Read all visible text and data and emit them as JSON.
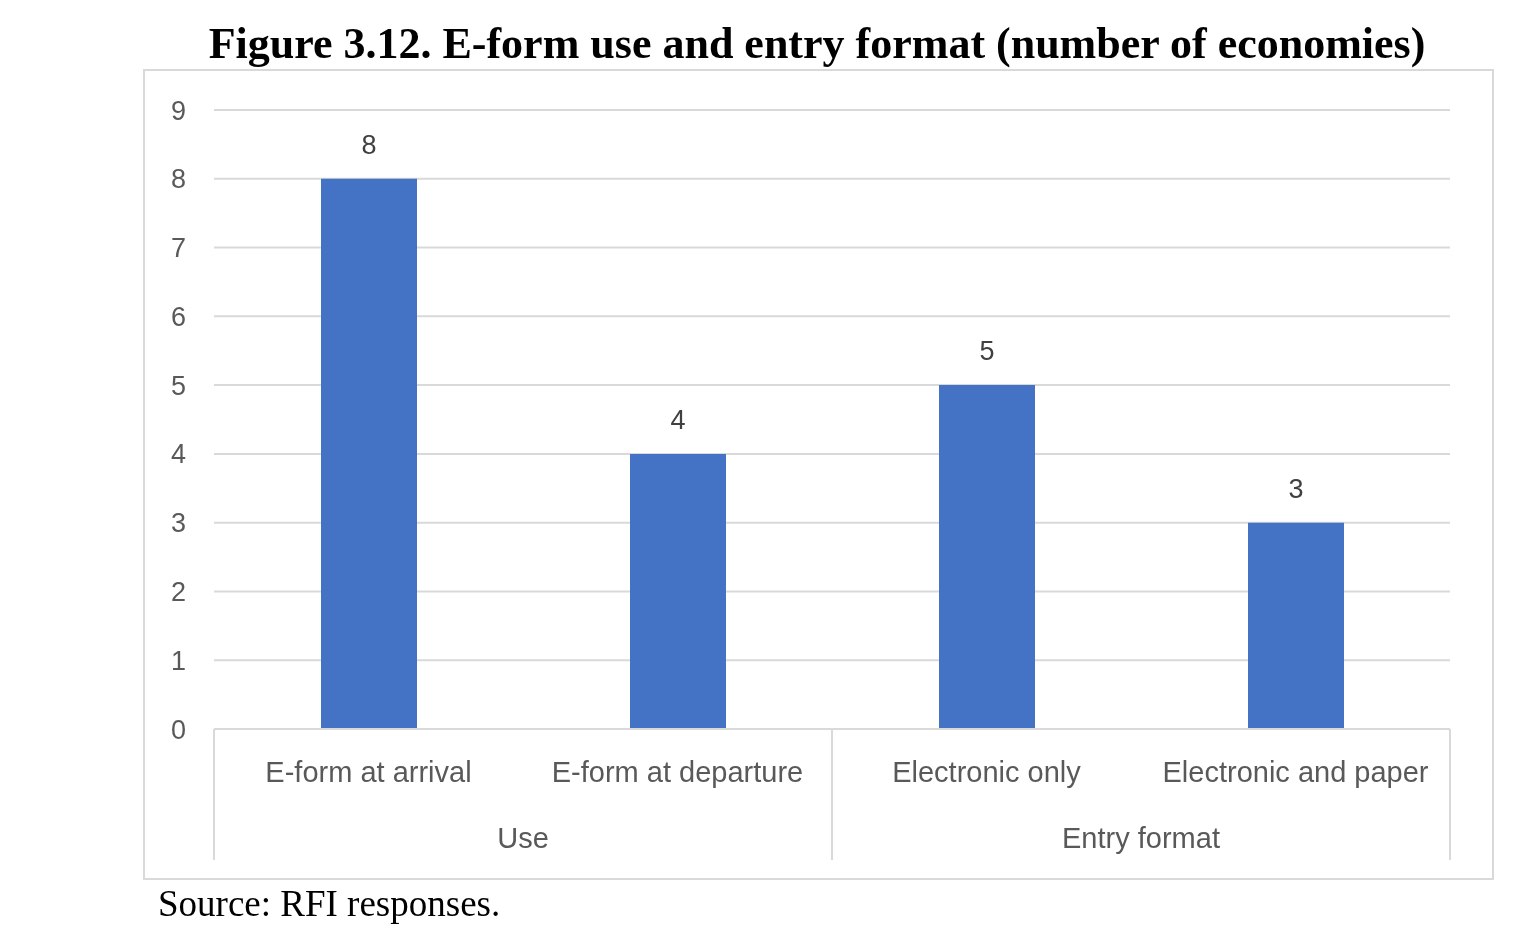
{
  "chart_data": {
    "type": "bar",
    "title": "Figure 3.12. E-form use and entry format (number of economies)",
    "categories": [
      "E-form at arrival",
      "E-form at departure",
      "Electronic only",
      "Electronic and paper"
    ],
    "values": [
      8,
      4,
      5,
      3
    ],
    "color": "#4472c4",
    "ylim": [
      0,
      9
    ],
    "yticks": [
      0,
      1,
      2,
      3,
      4,
      5,
      6,
      7,
      8,
      9
    ],
    "grid": "y",
    "data_labels": true,
    "annotations": [
      "Use",
      "Entry format",
      "Source: RFI responses."
    ]
  }
}
